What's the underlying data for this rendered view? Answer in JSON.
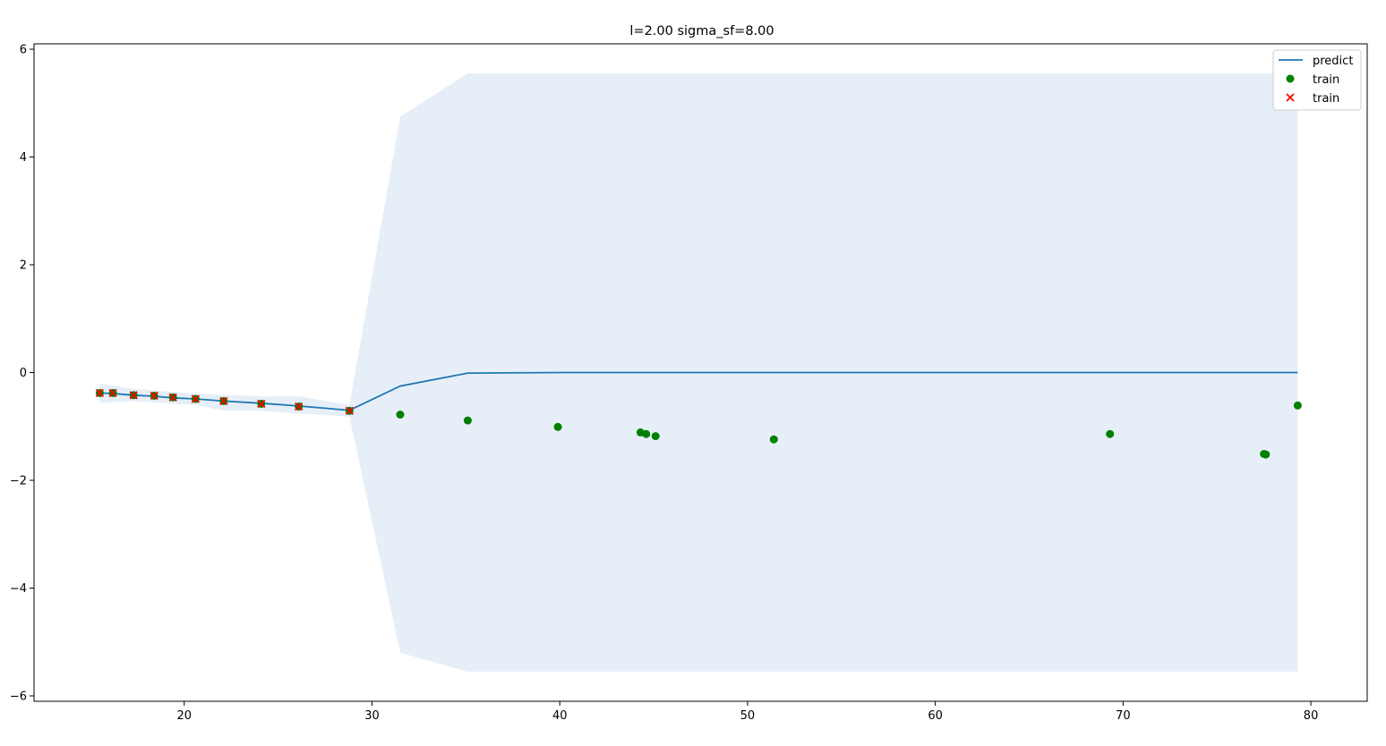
{
  "chart_data": {
    "type": "line",
    "title": "l=2.00 sigma_sf=8.00",
    "xlabel": "",
    "ylabel": "",
    "xlim": [
      12.0,
      83.0
    ],
    "ylim": [
      -6.1,
      6.1
    ],
    "x_ticks": [
      20,
      30,
      40,
      50,
      60,
      70,
      80
    ],
    "y_ticks": [
      -6,
      -4,
      -2,
      0,
      2,
      4,
      6
    ],
    "grid": false,
    "legend_position": "top-right",
    "legend": [
      "predict",
      "train",
      "train"
    ],
    "colors": {
      "predict": "#1f77b4",
      "band": "#e6eff7",
      "train_dot": "#008000",
      "train_cross": "#ff0000"
    },
    "predict": {
      "name": "predict",
      "x": [
        15.5,
        16.2,
        17.3,
        18.4,
        19.4,
        20.6,
        22.1,
        24.1,
        26.1,
        28.8,
        31.5,
        35.1,
        40,
        50,
        60,
        70,
        79.3
      ],
      "y": [
        -0.38,
        -0.39,
        -0.42,
        -0.44,
        -0.47,
        -0.49,
        -0.53,
        -0.57,
        -0.62,
        -0.7,
        -0.25,
        -0.01,
        0,
        0,
        0,
        0,
        0
      ],
      "upper": [
        -0.2,
        -0.24,
        -0.3,
        -0.33,
        -0.36,
        -0.39,
        -0.41,
        -0.44,
        -0.44,
        -0.6,
        4.75,
        5.55,
        5.55,
        5.55,
        5.55,
        5.55,
        5.55
      ],
      "lower": [
        -0.56,
        -0.55,
        -0.53,
        -0.55,
        -0.58,
        -0.6,
        -0.71,
        -0.71,
        -0.76,
        -0.82,
        -5.2,
        -5.55,
        -5.55,
        -5.55,
        -5.55,
        -5.55,
        -5.55
      ]
    },
    "train_points": {
      "name": "train",
      "x": [
        15.5,
        16.2,
        17.3,
        18.4,
        19.4,
        20.6,
        22.1,
        24.1,
        26.1,
        28.8,
        31.5,
        35.1,
        39.9,
        44.3,
        44.6,
        45.1,
        51.4,
        69.3,
        77.5,
        77.6,
        79.3
      ],
      "y": [
        -0.38,
        -0.38,
        -0.42,
        -0.43,
        -0.46,
        -0.49,
        -0.53,
        -0.58,
        -0.63,
        -0.71,
        -0.78,
        -0.89,
        -1.01,
        -1.11,
        -1.14,
        -1.18,
        -1.24,
        -1.14,
        -1.51,
        -1.52,
        -0.61
      ]
    },
    "train_crosses": {
      "name": "train",
      "x": [
        15.5,
        16.2,
        17.3,
        18.4,
        19.4,
        20.6,
        22.1,
        24.1,
        26.1,
        28.8
      ],
      "y": [
        -0.38,
        -0.38,
        -0.42,
        -0.43,
        -0.46,
        -0.49,
        -0.53,
        -0.58,
        -0.63,
        -0.71
      ]
    }
  }
}
